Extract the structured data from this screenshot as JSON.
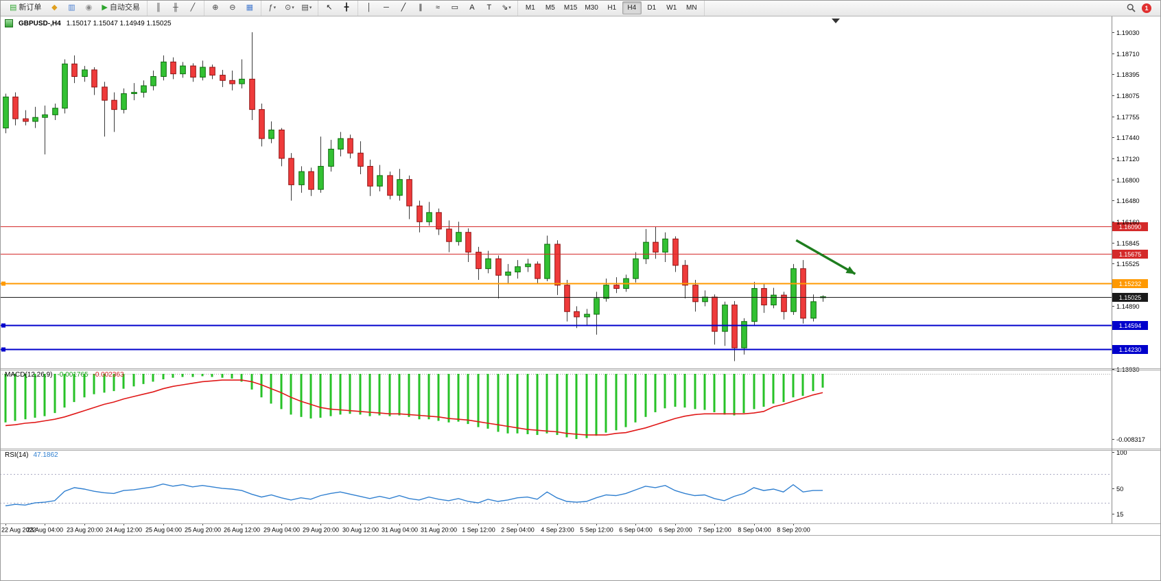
{
  "toolbar": {
    "badge": "1",
    "groups": [
      {
        "name": "trade",
        "items": [
          {
            "name": "new-order-button",
            "type": "labeled",
            "glyph": "▤",
            "glyph_color": "#2da52d",
            "label": "新订单"
          },
          {
            "name": "metaeditor-icon",
            "type": "icon",
            "glyph": "◆",
            "glyph_color": "#e0a020"
          },
          {
            "name": "charts-grid-icon",
            "type": "icon",
            "glyph": "▥",
            "glyph_color": "#4a7ed0"
          },
          {
            "name": "history-center-icon",
            "type": "icon",
            "glyph": "◉",
            "glyph_color": "#8a8a8a"
          },
          {
            "name": "autotrading-button",
            "type": "labeled",
            "glyph": "▶",
            "glyph_color": "#2da52d",
            "label": "自动交易"
          }
        ]
      },
      {
        "name": "chart-type",
        "items": [
          {
            "name": "bar-chart-button",
            "type": "icon",
            "glyph": "║",
            "glyph_color": "#444444"
          },
          {
            "name": "candlestick-chart-button",
            "type": "icon",
            "glyph": "╫",
            "glyph_color": "#444444"
          },
          {
            "name": "line-chart-button",
            "type": "icon",
            "glyph": "╱",
            "glyph_color": "#444444"
          }
        ]
      },
      {
        "name": "zoom",
        "items": [
          {
            "name": "zoom-in-button",
            "type": "icon",
            "glyph": "⊕",
            "glyph_color": "#444444"
          },
          {
            "name": "zoom-out-button",
            "type": "icon",
            "glyph": "⊖",
            "glyph_color": "#444444"
          },
          {
            "name": "tile-windows-button",
            "type": "icon",
            "glyph": "▦",
            "glyph_color": "#4a7ed0"
          }
        ]
      },
      {
        "name": "insert",
        "items": [
          {
            "name": "indicators-button",
            "type": "dropdown",
            "glyph": "ƒ",
            "glyph_color": "#444444"
          },
          {
            "name": "periods-button",
            "type": "dropdown",
            "glyph": "⊙",
            "glyph_color": "#444444"
          },
          {
            "name": "templates-button",
            "type": "dropdown",
            "glyph": "▤",
            "glyph_color": "#444444"
          }
        ]
      },
      {
        "name": "cursor",
        "items": [
          {
            "name": "cursor-button",
            "type": "icon",
            "glyph": "↖",
            "glyph_color": "#222222"
          },
          {
            "name": "crosshair-button",
            "type": "icon",
            "glyph": "╋",
            "glyph_color": "#222222"
          }
        ]
      },
      {
        "name": "objects",
        "items": [
          {
            "name": "vertical-line-button",
            "type": "icon",
            "glyph": "│",
            "glyph_color": "#222222"
          },
          {
            "name": "horizontal-line-button",
            "type": "icon",
            "glyph": "─",
            "glyph_color": "#222222"
          },
          {
            "name": "trendline-button",
            "type": "icon",
            "glyph": "╱",
            "glyph_color": "#222222"
          },
          {
            "name": "equidistant-channel-button",
            "type": "icon",
            "glyph": "∥",
            "glyph_color": "#222222"
          },
          {
            "name": "fibonacci-button",
            "type": "icon",
            "glyph": "≈",
            "glyph_color": "#222222"
          },
          {
            "name": "shapes-button",
            "type": "icon",
            "glyph": "▭",
            "glyph_color": "#222222"
          },
          {
            "name": "text-button",
            "type": "icon",
            "glyph": "A",
            "glyph_color": "#222222"
          },
          {
            "name": "text-label-button",
            "type": "icon",
            "glyph": "T",
            "glyph_color": "#222222"
          },
          {
            "name": "arrows-button",
            "type": "dropdown",
            "glyph": "⇘",
            "glyph_color": "#222222"
          }
        ]
      },
      {
        "name": "timeframes",
        "items": [
          {
            "name": "timeframe-m1",
            "type": "tf",
            "label": "M1"
          },
          {
            "name": "timeframe-m5",
            "type": "tf",
            "label": "M5"
          },
          {
            "name": "timeframe-m15",
            "type": "tf",
            "label": "M15"
          },
          {
            "name": "timeframe-m30",
            "type": "tf",
            "label": "M30"
          },
          {
            "name": "timeframe-h1",
            "type": "tf",
            "label": "H1"
          },
          {
            "name": "timeframe-h4",
            "type": "tf",
            "label": "H4",
            "active": true
          },
          {
            "name": "timeframe-d1",
            "type": "tf",
            "label": "D1"
          },
          {
            "name": "timeframe-w1",
            "type": "tf",
            "label": "W1"
          },
          {
            "name": "timeframe-mn",
            "type": "tf",
            "label": "MN"
          }
        ]
      }
    ]
  },
  "chart_data": {
    "type": "candlestick",
    "symbol": "GBPUSD-",
    "period": "H4",
    "title": "GBPUSD-,H4",
    "ohlc_display": "1.15017 1.15047 1.14949 1.15025",
    "current_price": 1.15025,
    "ylim": [
      1.1393,
      1.1903
    ],
    "price_axis_labels": [
      "1.19030",
      "1.18710",
      "1.18395",
      "1.18075",
      "1.17755",
      "1.17440",
      "1.17120",
      "1.16800",
      "1.16480",
      "1.16160",
      "1.15845",
      "1.15525",
      "1.14890",
      "1.13930"
    ],
    "hlines": [
      {
        "name": "resistance-line-1",
        "price": 1.1609,
        "label": "1.16090",
        "color": "#d42a2a",
        "width": 1,
        "marker": false
      },
      {
        "name": "resistance-line-2",
        "price": 1.15675,
        "label": "1.15675",
        "color": "#d42a2a",
        "width": 1,
        "marker": false
      },
      {
        "name": "pivot-line-orange",
        "price": 1.15232,
        "label": "1.15232",
        "color": "#ff9900",
        "width": 2,
        "marker": true
      },
      {
        "name": "current-price-line",
        "price": 1.15025,
        "label": "1.15025",
        "color": "#1a1a1a",
        "width": 1,
        "marker": false
      },
      {
        "name": "support-line-1",
        "price": 1.14594,
        "label": "1.14594",
        "color": "#0000cc",
        "width": 2,
        "marker": true
      },
      {
        "name": "support-line-2",
        "price": 1.1423,
        "label": "1.14230",
        "color": "#0000cc",
        "width": 2,
        "marker": true
      }
    ],
    "trend_arrow": {
      "b1": 80.3,
      "p1": 1.1588,
      "b2": 86.3,
      "p2": 1.1537,
      "color": "#1e7d1e"
    },
    "time_labels": [
      {
        "i": 0,
        "label": "22 Aug 2022"
      },
      {
        "i": 4,
        "label": "23 Aug 04:00"
      },
      {
        "i": 8,
        "label": "23 Aug 20:00"
      },
      {
        "i": 12,
        "label": "24 Aug 12:00"
      },
      {
        "i": 16,
        "label": "25 Aug 04:00"
      },
      {
        "i": 20,
        "label": "25 Aug 20:00"
      },
      {
        "i": 24,
        "label": "26 Aug 12:00"
      },
      {
        "i": 28,
        "label": "29 Aug 04:00"
      },
      {
        "i": 32,
        "label": "29 Aug 20:00"
      },
      {
        "i": 36,
        "label": "30 Aug 12:00"
      },
      {
        "i": 40,
        "label": "31 Aug 04:00"
      },
      {
        "i": 44,
        "label": "31 Aug 20:00"
      },
      {
        "i": 48,
        "label": "1 Sep 12:00"
      },
      {
        "i": 52,
        "label": "2 Sep 04:00"
      },
      {
        "i": 56,
        "label": "4 Sep 23:00"
      },
      {
        "i": 60,
        "label": "5 Sep 12:00"
      },
      {
        "i": 64,
        "label": "6 Sep 04:00"
      },
      {
        "i": 68,
        "label": "6 Sep 20:00"
      },
      {
        "i": 72,
        "label": "7 Sep 12:00"
      },
      {
        "i": 76,
        "label": "8 Sep 04:00"
      },
      {
        "i": 80,
        "label": "8 Sep 20:00"
      }
    ],
    "candles": [
      [
        1.1758,
        1.181,
        1.175,
        1.1805
      ],
      [
        1.1805,
        1.1812,
        1.1762,
        1.1772
      ],
      [
        1.1772,
        1.1785,
        1.1762,
        1.1768
      ],
      [
        1.1768,
        1.179,
        1.1758,
        1.1774
      ],
      [
        1.1774,
        1.1792,
        1.1718,
        1.1778
      ],
      [
        1.1778,
        1.1795,
        1.177,
        1.1788
      ],
      [
        1.1788,
        1.1862,
        1.178,
        1.1855
      ],
      [
        1.1855,
        1.1868,
        1.1826,
        1.1836
      ],
      [
        1.1836,
        1.1852,
        1.1828,
        1.1846
      ],
      [
        1.1846,
        1.185,
        1.1808,
        1.182
      ],
      [
        1.182,
        1.1828,
        1.1745,
        1.18
      ],
      [
        1.18,
        1.1812,
        1.1752,
        1.1786
      ],
      [
        1.1786,
        1.1818,
        1.178,
        1.181
      ],
      [
        1.181,
        1.1826,
        1.18,
        1.1812
      ],
      [
        1.1812,
        1.183,
        1.1804,
        1.1822
      ],
      [
        1.1822,
        1.1845,
        1.1815,
        1.1836
      ],
      [
        1.1836,
        1.1868,
        1.183,
        1.1858
      ],
      [
        1.1858,
        1.1865,
        1.1832,
        1.184
      ],
      [
        1.184,
        1.1858,
        1.1834,
        1.1852
      ],
      [
        1.1852,
        1.1856,
        1.1828,
        1.1835
      ],
      [
        1.1835,
        1.186,
        1.183,
        1.185
      ],
      [
        1.185,
        1.1854,
        1.1832,
        1.1838
      ],
      [
        1.1838,
        1.1846,
        1.182,
        1.183
      ],
      [
        1.183,
        1.1845,
        1.1815,
        1.1825
      ],
      [
        1.1825,
        1.1862,
        1.1818,
        1.1832
      ],
      [
        1.1832,
        1.1903,
        1.177,
        1.1786
      ],
      [
        1.1786,
        1.1795,
        1.173,
        1.1742
      ],
      [
        1.1742,
        1.1768,
        1.1735,
        1.1755
      ],
      [
        1.1755,
        1.1758,
        1.17,
        1.1712
      ],
      [
        1.1712,
        1.172,
        1.1648,
        1.1672
      ],
      [
        1.1672,
        1.17,
        1.166,
        1.1692
      ],
      [
        1.1692,
        1.1698,
        1.1655,
        1.1665
      ],
      [
        1.1665,
        1.1745,
        1.166,
        1.17
      ],
      [
        1.17,
        1.174,
        1.1692,
        1.1726
      ],
      [
        1.1726,
        1.1752,
        1.1715,
        1.1742
      ],
      [
        1.1742,
        1.1748,
        1.1712,
        1.172
      ],
      [
        1.172,
        1.1738,
        1.1688,
        1.17
      ],
      [
        1.17,
        1.171,
        1.1655,
        1.167
      ],
      [
        1.167,
        1.1702,
        1.1662,
        1.1686
      ],
      [
        1.1686,
        1.1692,
        1.165,
        1.1656
      ],
      [
        1.1656,
        1.1696,
        1.1648,
        1.168
      ],
      [
        1.168,
        1.1686,
        1.162,
        1.164
      ],
      [
        1.164,
        1.1648,
        1.16,
        1.1616
      ],
      [
        1.1616,
        1.1646,
        1.161,
        1.163
      ],
      [
        1.163,
        1.1636,
        1.1596,
        1.1605
      ],
      [
        1.1605,
        1.1618,
        1.157,
        1.1586
      ],
      [
        1.1586,
        1.1616,
        1.158,
        1.16
      ],
      [
        1.16,
        1.1606,
        1.1555,
        1.157
      ],
      [
        1.157,
        1.1578,
        1.1528,
        1.1545
      ],
      [
        1.1545,
        1.1572,
        1.1538,
        1.156
      ],
      [
        1.156,
        1.1565,
        1.15,
        1.1535
      ],
      [
        1.1535,
        1.1552,
        1.1522,
        1.154
      ],
      [
        1.154,
        1.1558,
        1.153,
        1.1548
      ],
      [
        1.1548,
        1.156,
        1.154,
        1.1552
      ],
      [
        1.1552,
        1.1556,
        1.1522,
        1.153
      ],
      [
        1.153,
        1.1595,
        1.1526,
        1.1582
      ],
      [
        1.1582,
        1.1588,
        1.1505,
        1.152
      ],
      [
        1.152,
        1.1528,
        1.1465,
        1.148
      ],
      [
        1.148,
        1.1488,
        1.1455,
        1.1472
      ],
      [
        1.1472,
        1.1484,
        1.146,
        1.1476
      ],
      [
        1.1476,
        1.151,
        1.1445,
        1.15
      ],
      [
        1.15,
        1.153,
        1.1495,
        1.152
      ],
      [
        1.152,
        1.1532,
        1.1508,
        1.1515
      ],
      [
        1.1515,
        1.1536,
        1.151,
        1.153
      ],
      [
        1.153,
        1.157,
        1.1524,
        1.156
      ],
      [
        1.156,
        1.1605,
        1.1552,
        1.1585
      ],
      [
        1.1585,
        1.1608,
        1.156,
        1.157
      ],
      [
        1.157,
        1.16,
        1.1555,
        1.159
      ],
      [
        1.159,
        1.1594,
        1.154,
        1.155
      ],
      [
        1.155,
        1.1558,
        1.15,
        1.152
      ],
      [
        1.152,
        1.1528,
        1.148,
        1.1495
      ],
      [
        1.1495,
        1.1512,
        1.1488,
        1.1502
      ],
      [
        1.1502,
        1.1506,
        1.143,
        1.145
      ],
      [
        1.145,
        1.1495,
        1.1428,
        1.149
      ],
      [
        1.149,
        1.1496,
        1.1405,
        1.1425
      ],
      [
        1.1425,
        1.147,
        1.1415,
        1.1465
      ],
      [
        1.1465,
        1.1525,
        1.146,
        1.1515
      ],
      [
        1.1515,
        1.1522,
        1.1478,
        1.149
      ],
      [
        1.149,
        1.1516,
        1.1485,
        1.1505
      ],
      [
        1.1505,
        1.151,
        1.1468,
        1.148
      ],
      [
        1.148,
        1.1552,
        1.1475,
        1.1545
      ],
      [
        1.1545,
        1.1558,
        1.1462,
        1.147
      ],
      [
        1.147,
        1.1506,
        1.1465,
        1.1495
      ],
      [
        1.15017,
        1.15047,
        1.14949,
        1.15025
      ]
    ],
    "macd": {
      "label": "MACD(12,26,9)",
      "value_str": "-0.001765",
      "signal_str": "-0.002363",
      "min": -0.008317,
      "min_label": "-0.008317",
      "hist_color": "#27c227",
      "signal_color": "#e01818",
      "hist": [
        -0.0062,
        -0.006,
        -0.0058,
        -0.0056,
        -0.0054,
        -0.005,
        -0.0043,
        -0.0036,
        -0.003,
        -0.0026,
        -0.0024,
        -0.0022,
        -0.0019,
        -0.0016,
        -0.0013,
        -0.001,
        -0.0007,
        -0.0005,
        -0.0004,
        -0.0004,
        -0.0003,
        -0.0004,
        -0.0005,
        -0.0006,
        -0.001,
        -0.002,
        -0.003,
        -0.0038,
        -0.0045,
        -0.0052,
        -0.0055,
        -0.0057,
        -0.0056,
        -0.0054,
        -0.0052,
        -0.0051,
        -0.0052,
        -0.0054,
        -0.0053,
        -0.0054,
        -0.0053,
        -0.0055,
        -0.0058,
        -0.0058,
        -0.006,
        -0.0062,
        -0.0061,
        -0.0064,
        -0.0068,
        -0.007,
        -0.0074,
        -0.0076,
        -0.0076,
        -0.0077,
        -0.0078,
        -0.0076,
        -0.0078,
        -0.0081,
        -0.00832,
        -0.0082,
        -0.0079,
        -0.0075,
        -0.0072,
        -0.0068,
        -0.0062,
        -0.0055,
        -0.0049,
        -0.0044,
        -0.0042,
        -0.0043,
        -0.0045,
        -0.0046,
        -0.0049,
        -0.0052,
        -0.0053,
        -0.005,
        -0.0045,
        -0.0042,
        -0.0038,
        -0.0036,
        -0.003,
        -0.0028,
        -0.0022,
        -0.001765
      ],
      "signal": [
        -0.0066,
        -0.0065,
        -0.0063,
        -0.0062,
        -0.006,
        -0.0058,
        -0.0055,
        -0.0051,
        -0.0047,
        -0.0043,
        -0.0039,
        -0.0036,
        -0.0032,
        -0.0029,
        -0.0026,
        -0.0023,
        -0.0019,
        -0.0016,
        -0.0014,
        -0.0012,
        -0.001,
        -0.0009,
        -0.0008,
        -0.0008,
        -0.0008,
        -0.001,
        -0.0014,
        -0.0019,
        -0.0024,
        -0.003,
        -0.0035,
        -0.0039,
        -0.0043,
        -0.0045,
        -0.0046,
        -0.0047,
        -0.0048,
        -0.0049,
        -0.005,
        -0.0051,
        -0.0051,
        -0.0052,
        -0.0053,
        -0.0054,
        -0.0055,
        -0.0057,
        -0.0058,
        -0.0059,
        -0.0061,
        -0.0063,
        -0.0065,
        -0.0067,
        -0.0069,
        -0.0071,
        -0.0072,
        -0.0073,
        -0.0074,
        -0.0076,
        -0.0077,
        -0.0078,
        -0.0078,
        -0.0078,
        -0.0076,
        -0.0075,
        -0.0072,
        -0.0069,
        -0.0065,
        -0.0061,
        -0.0057,
        -0.0054,
        -0.0052,
        -0.0051,
        -0.0051,
        -0.0051,
        -0.0051,
        -0.0051,
        -0.005,
        -0.0048,
        -0.0042,
        -0.0039,
        -0.0035,
        -0.0031,
        -0.0027,
        -0.0024
      ]
    },
    "rsi": {
      "label": "RSI(14)",
      "value_str": "47.1862",
      "line_color": "#2f7fd0",
      "axis_labels": [
        "100",
        "50",
        "15"
      ],
      "levels": [
        70,
        30
      ],
      "values": [
        26,
        28,
        27,
        30,
        31,
        33,
        46,
        51,
        49,
        46,
        44,
        43,
        47,
        48,
        50,
        52,
        56,
        53,
        55,
        52,
        54,
        52,
        50,
        49,
        47,
        42,
        38,
        41,
        37,
        34,
        37,
        35,
        40,
        43,
        45,
        42,
        39,
        36,
        39,
        36,
        40,
        36,
        34,
        38,
        35,
        33,
        36,
        32,
        30,
        35,
        32,
        34,
        37,
        38,
        35,
        45,
        37,
        32,
        31,
        32,
        37,
        41,
        40,
        43,
        48,
        53,
        51,
        54,
        47,
        43,
        40,
        41,
        36,
        33,
        39,
        43,
        51,
        47,
        49,
        45,
        55,
        45,
        47,
        47.2
      ]
    }
  }
}
